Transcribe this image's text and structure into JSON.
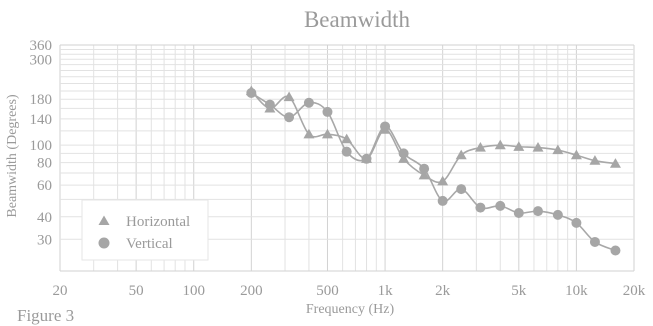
{
  "caption": "Figure 3",
  "chart_data": {
    "type": "line",
    "title": "Beamwidth",
    "xlabel": "Frequency (Hz)",
    "ylabel": "Beamwidth (Degrees)",
    "xscale": "log",
    "yscale": "log",
    "xlim": [
      20,
      20000
    ],
    "ylim": [
      20,
      360
    ],
    "x_ticks": [
      {
        "value": 20,
        "label": "20"
      },
      {
        "value": 50,
        "label": "50"
      },
      {
        "value": 100,
        "label": "100"
      },
      {
        "value": 200,
        "label": "200"
      },
      {
        "value": 500,
        "label": "500"
      },
      {
        "value": 1000,
        "label": "1k"
      },
      {
        "value": 2000,
        "label": "2k"
      },
      {
        "value": 5000,
        "label": "5k"
      },
      {
        "value": 10000,
        "label": "10k"
      },
      {
        "value": 20000,
        "label": "20k"
      }
    ],
    "y_ticks": [
      {
        "value": 30,
        "label": "30"
      },
      {
        "value": 40,
        "label": "40"
      },
      {
        "value": 60,
        "label": "60"
      },
      {
        "value": 80,
        "label": "80"
      },
      {
        "value": 100,
        "label": "100"
      },
      {
        "value": 140,
        "label": "140"
      },
      {
        "value": 180,
        "label": "180"
      },
      {
        "value": 300,
        "label": "300"
      },
      {
        "value": 360,
        "label": "360"
      }
    ],
    "grid": true,
    "legend_position": "bottom-left",
    "series": [
      {
        "name": "Horizontal",
        "marker": "triangle",
        "x": [
          200,
          250,
          315,
          400,
          500,
          630,
          800,
          1000,
          1250,
          1600,
          2000,
          2500,
          3150,
          4000,
          5000,
          6300,
          8000,
          10000,
          12500,
          16000
        ],
        "y": [
          200,
          160,
          185,
          115,
          115,
          108,
          84,
          122,
          84,
          68,
          63,
          88,
          97,
          100,
          98,
          97,
          94,
          88,
          82,
          79
        ]
      },
      {
        "name": "Vertical",
        "marker": "circle",
        "x": [
          200,
          250,
          315,
          400,
          500,
          630,
          800,
          1000,
          1250,
          1600,
          2000,
          2500,
          3150,
          4000,
          5000,
          6300,
          8000,
          10000,
          12500,
          16000
        ],
        "y": [
          195,
          168,
          143,
          172,
          153,
          92,
          84,
          127,
          90,
          74,
          49,
          57,
          45,
          46,
          42,
          43,
          41,
          37,
          29,
          26
        ]
      }
    ]
  }
}
